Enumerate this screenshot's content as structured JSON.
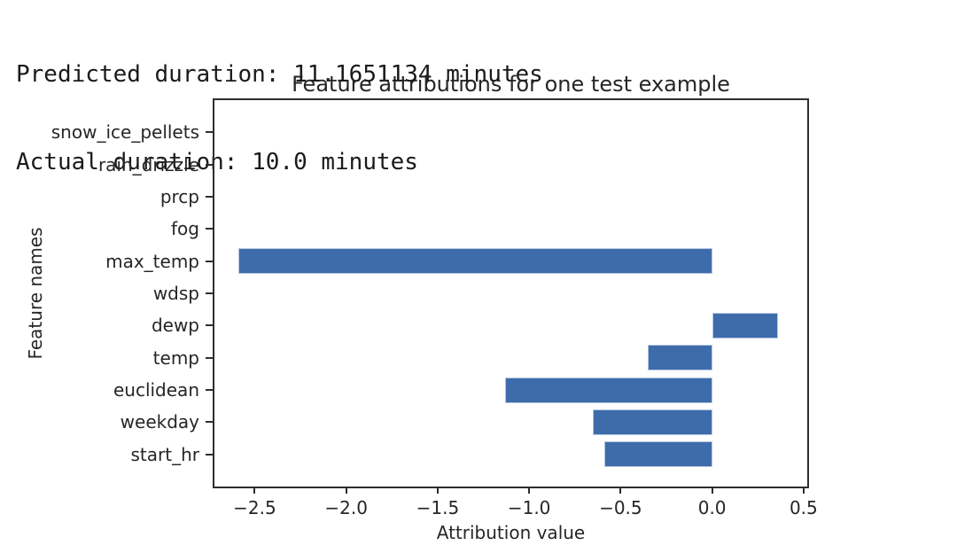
{
  "header": {
    "line1": "Predicted duration: 11.1651134 minutes",
    "line2": "Actual duration: 10.0 minutes"
  },
  "chart_data": {
    "type": "bar",
    "orientation": "horizontal",
    "title": "Feature attributions for one test example",
    "xlabel": "Attribution value",
    "ylabel": "Feature names",
    "categories": [
      "snow_ice_pellets",
      "rain_drizzle",
      "prcp",
      "fog",
      "max_temp",
      "wdsp",
      "dewp",
      "temp",
      "euclidean",
      "weekday",
      "start_hr"
    ],
    "values": [
      0,
      0,
      0,
      0,
      -2.59,
      0,
      0.36,
      -0.35,
      -1.13,
      -0.65,
      -0.59
    ],
    "xlim": [
      -2.72,
      0.52
    ],
    "xticks": [
      -2.5,
      -2.0,
      -1.5,
      -1.0,
      -0.5,
      0.0,
      0.5
    ],
    "xtick_labels": [
      "−2.5",
      "−2.0",
      "−1.5",
      "−1.0",
      "−0.5",
      "0.0",
      "0.5"
    ],
    "grid": false,
    "legend": false,
    "colors": {
      "bar_fill": "#3e6cab",
      "bar_edge": "#b5c7e0",
      "spine": "#2e2e2e",
      "text": "#262626"
    }
  }
}
